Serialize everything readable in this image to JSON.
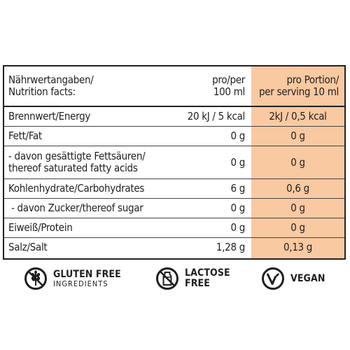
{
  "table": {
    "header": {
      "col1": [
        "Nährwertangaben/",
        "Nutrition facts:"
      ],
      "col2": [
        "pro/per",
        "100 ml"
      ],
      "col3": [
        "pro Portion/",
        "per serving 10 ml"
      ]
    },
    "rows": [
      {
        "label": [
          "Brennwert/Energy"
        ],
        "per100": "20 kJ / 5 kcal",
        "serving": "2kJ / 0,5 kcal"
      },
      {
        "label": [
          "Fett/Fat"
        ],
        "per100": "0 g",
        "serving": "0 g"
      },
      {
        "label": [
          "- davon gesättigte Fettsäuren/",
          "thereof saturated fatty acids"
        ],
        "per100": "0 g",
        "serving": "0 g"
      },
      {
        "label": [
          "Kohlenhydrate/Carbohydrates"
        ],
        "per100": "6 g",
        "serving": "0,6 g"
      },
      {
        "label": [
          " - davon Zucker/thereof sugar"
        ],
        "per100": "0 g",
        "serving": "0 g"
      },
      {
        "label": [
          "Eiweiß/Protein"
        ],
        "per100": "0 g",
        "serving": "0 g"
      },
      {
        "label": [
          "Salz/Salt"
        ],
        "per100": "1,28 g",
        "serving": "0,13 g"
      }
    ]
  },
  "badges": {
    "gluten": {
      "icon": "wheat-crossed-icon",
      "line1": "GLUTEN FREE",
      "line2": "INGREDIENTS"
    },
    "lactose": {
      "icon": "milk-carton-crossed-icon",
      "line1": "LACTOSE",
      "line2": "FREE"
    },
    "vegan": {
      "icon": "vegan-v-icon",
      "line1": "VEGAN"
    }
  },
  "colors": {
    "highlight": "#f9c9a1",
    "border": "#222222",
    "text": "#1f1f1f"
  }
}
